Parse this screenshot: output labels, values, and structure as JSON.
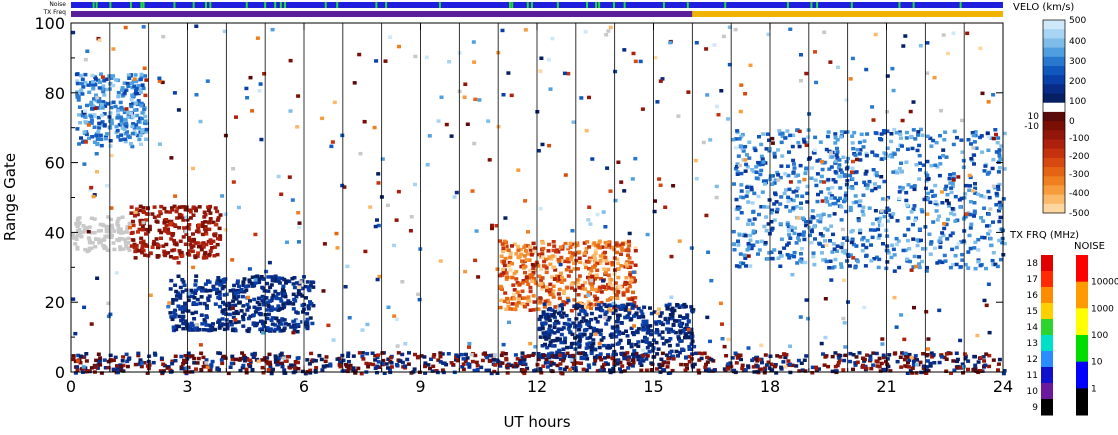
{
  "header": {
    "noise_label": "Noise",
    "txfreq_label": "TX Freq"
  },
  "chart_data": {
    "type": "heatmap",
    "xlabel": "UT hours",
    "ylabel": "Range Gate",
    "xlim": [
      0,
      24
    ],
    "ylim": [
      0,
      100
    ],
    "x_ticks": [
      "0",
      "3",
      "6",
      "9",
      "12",
      "15",
      "18",
      "21",
      "24"
    ],
    "y_ticks": [
      "0",
      "20",
      "40",
      "60",
      "80",
      "100"
    ],
    "scan_boundaries_ut": [
      1,
      2,
      3,
      4,
      5,
      6,
      7,
      8,
      9,
      10,
      11,
      12,
      13,
      14,
      15,
      16,
      17,
      18,
      19,
      20,
      21,
      22,
      23
    ],
    "noise_bar": {
      "base_color": "#1f1fdd",
      "spike_color": "#22dd33"
    },
    "txfreq_bar": {
      "segments": [
        {
          "from": 0,
          "to": 16,
          "color": "#5a1f9a"
        },
        {
          "from": 16,
          "to": 24,
          "color": "#f0b400"
        }
      ]
    },
    "regions": [
      {
        "label": "high-latitude echoes early",
        "x": [
          0.1,
          1.9
        ],
        "y": [
          65,
          86
        ],
        "velocity_range": [
          150,
          400
        ]
      },
      {
        "label": "ground scatter early",
        "x": [
          0,
          1.5
        ],
        "y": [
          35,
          45
        ],
        "velocity_range": [
          0,
          0
        ]
      },
      {
        "label": "negative band early",
        "x": [
          1.5,
          3.8
        ],
        "y": [
          33,
          48
        ],
        "velocity_range": [
          -200,
          -50
        ]
      },
      {
        "label": "blue band dawn",
        "x": [
          2.5,
          6.2
        ],
        "y": [
          12,
          28
        ],
        "velocity_range": [
          20,
          150
        ]
      },
      {
        "label": "afternoon orange band",
        "x": [
          11.0,
          14.5
        ],
        "y": [
          18,
          38
        ],
        "velocity_range": [
          -500,
          -150
        ]
      },
      {
        "label": "descending blue band",
        "x": [
          12.0,
          16.0
        ],
        "y": [
          4,
          20
        ],
        "velocity_range": [
          20,
          150
        ]
      },
      {
        "label": "night blue echoes",
        "x": [
          17.0,
          24.0
        ],
        "y": [
          30,
          70
        ],
        "velocity_range": [
          100,
          400
        ]
      },
      {
        "label": "near range gate noise",
        "x": [
          0,
          24
        ],
        "y": [
          0,
          6
        ],
        "velocity_range": [
          -150,
          150
        ]
      }
    ],
    "velocity_scale": {
      "title": "VELO (km/s)",
      "ticks": [
        "500",
        "400",
        "300",
        "200",
        "100",
        "10",
        "0",
        "-10",
        "-100",
        "-200",
        "-300",
        "-400",
        "-500"
      ],
      "colors": [
        "#cde8f8",
        "#a8d4f4",
        "#7ebde8",
        "#4f9fdf",
        "#2878cf",
        "#1058be",
        "#0a3fa8",
        "#082c86",
        "#061f62",
        "#ffffff",
        "#5a0a0a",
        "#7a0f06",
        "#93160b",
        "#ad200d",
        "#c4320f",
        "#d64a11",
        "#e56413",
        "#ef7f1f",
        "#f69c3d",
        "#fbba6a",
        "#fdd6a0"
      ]
    },
    "txfreq_scale": {
      "title": "TX FRQ (MHz)",
      "ticks": [
        "18",
        "17",
        "16",
        "15",
        "14",
        "13",
        "12",
        "11",
        "10",
        "9"
      ],
      "colors": [
        "#e00000",
        "#ff2a00",
        "#ff8c00",
        "#ffd000",
        "#2dd42d",
        "#00e0c8",
        "#2b8cff",
        "#1111cc",
        "#6a1a9a",
        "#000000"
      ]
    },
    "noise_scale": {
      "title": "NOISE",
      "ticks": [
        "10000",
        "1000",
        "100",
        "10",
        "1"
      ],
      "colors": [
        "#ff0000",
        "#ff9a00",
        "#ffff00",
        "#00dd00",
        "#0000ff",
        "#000000"
      ]
    }
  }
}
